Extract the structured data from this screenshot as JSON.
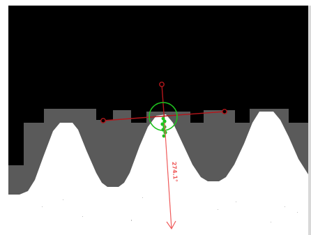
{
  "measurement": {
    "angle_label": "274.1°"
  },
  "colors": {
    "background_dark": "#000000",
    "tooth_shadow": "#5a5a5a",
    "tooth_profile": "#ffffff",
    "crosshair": "#b4161b",
    "fit_marker": "#1fc21f",
    "direction_arrow": "#ef5a5a",
    "frame_border": "#d8d8d8"
  },
  "icons": {
    "crosshair": "crosshair-icon",
    "fit_circle": "fit-circle-icon",
    "direction_arrow": "down-arrow-icon"
  }
}
